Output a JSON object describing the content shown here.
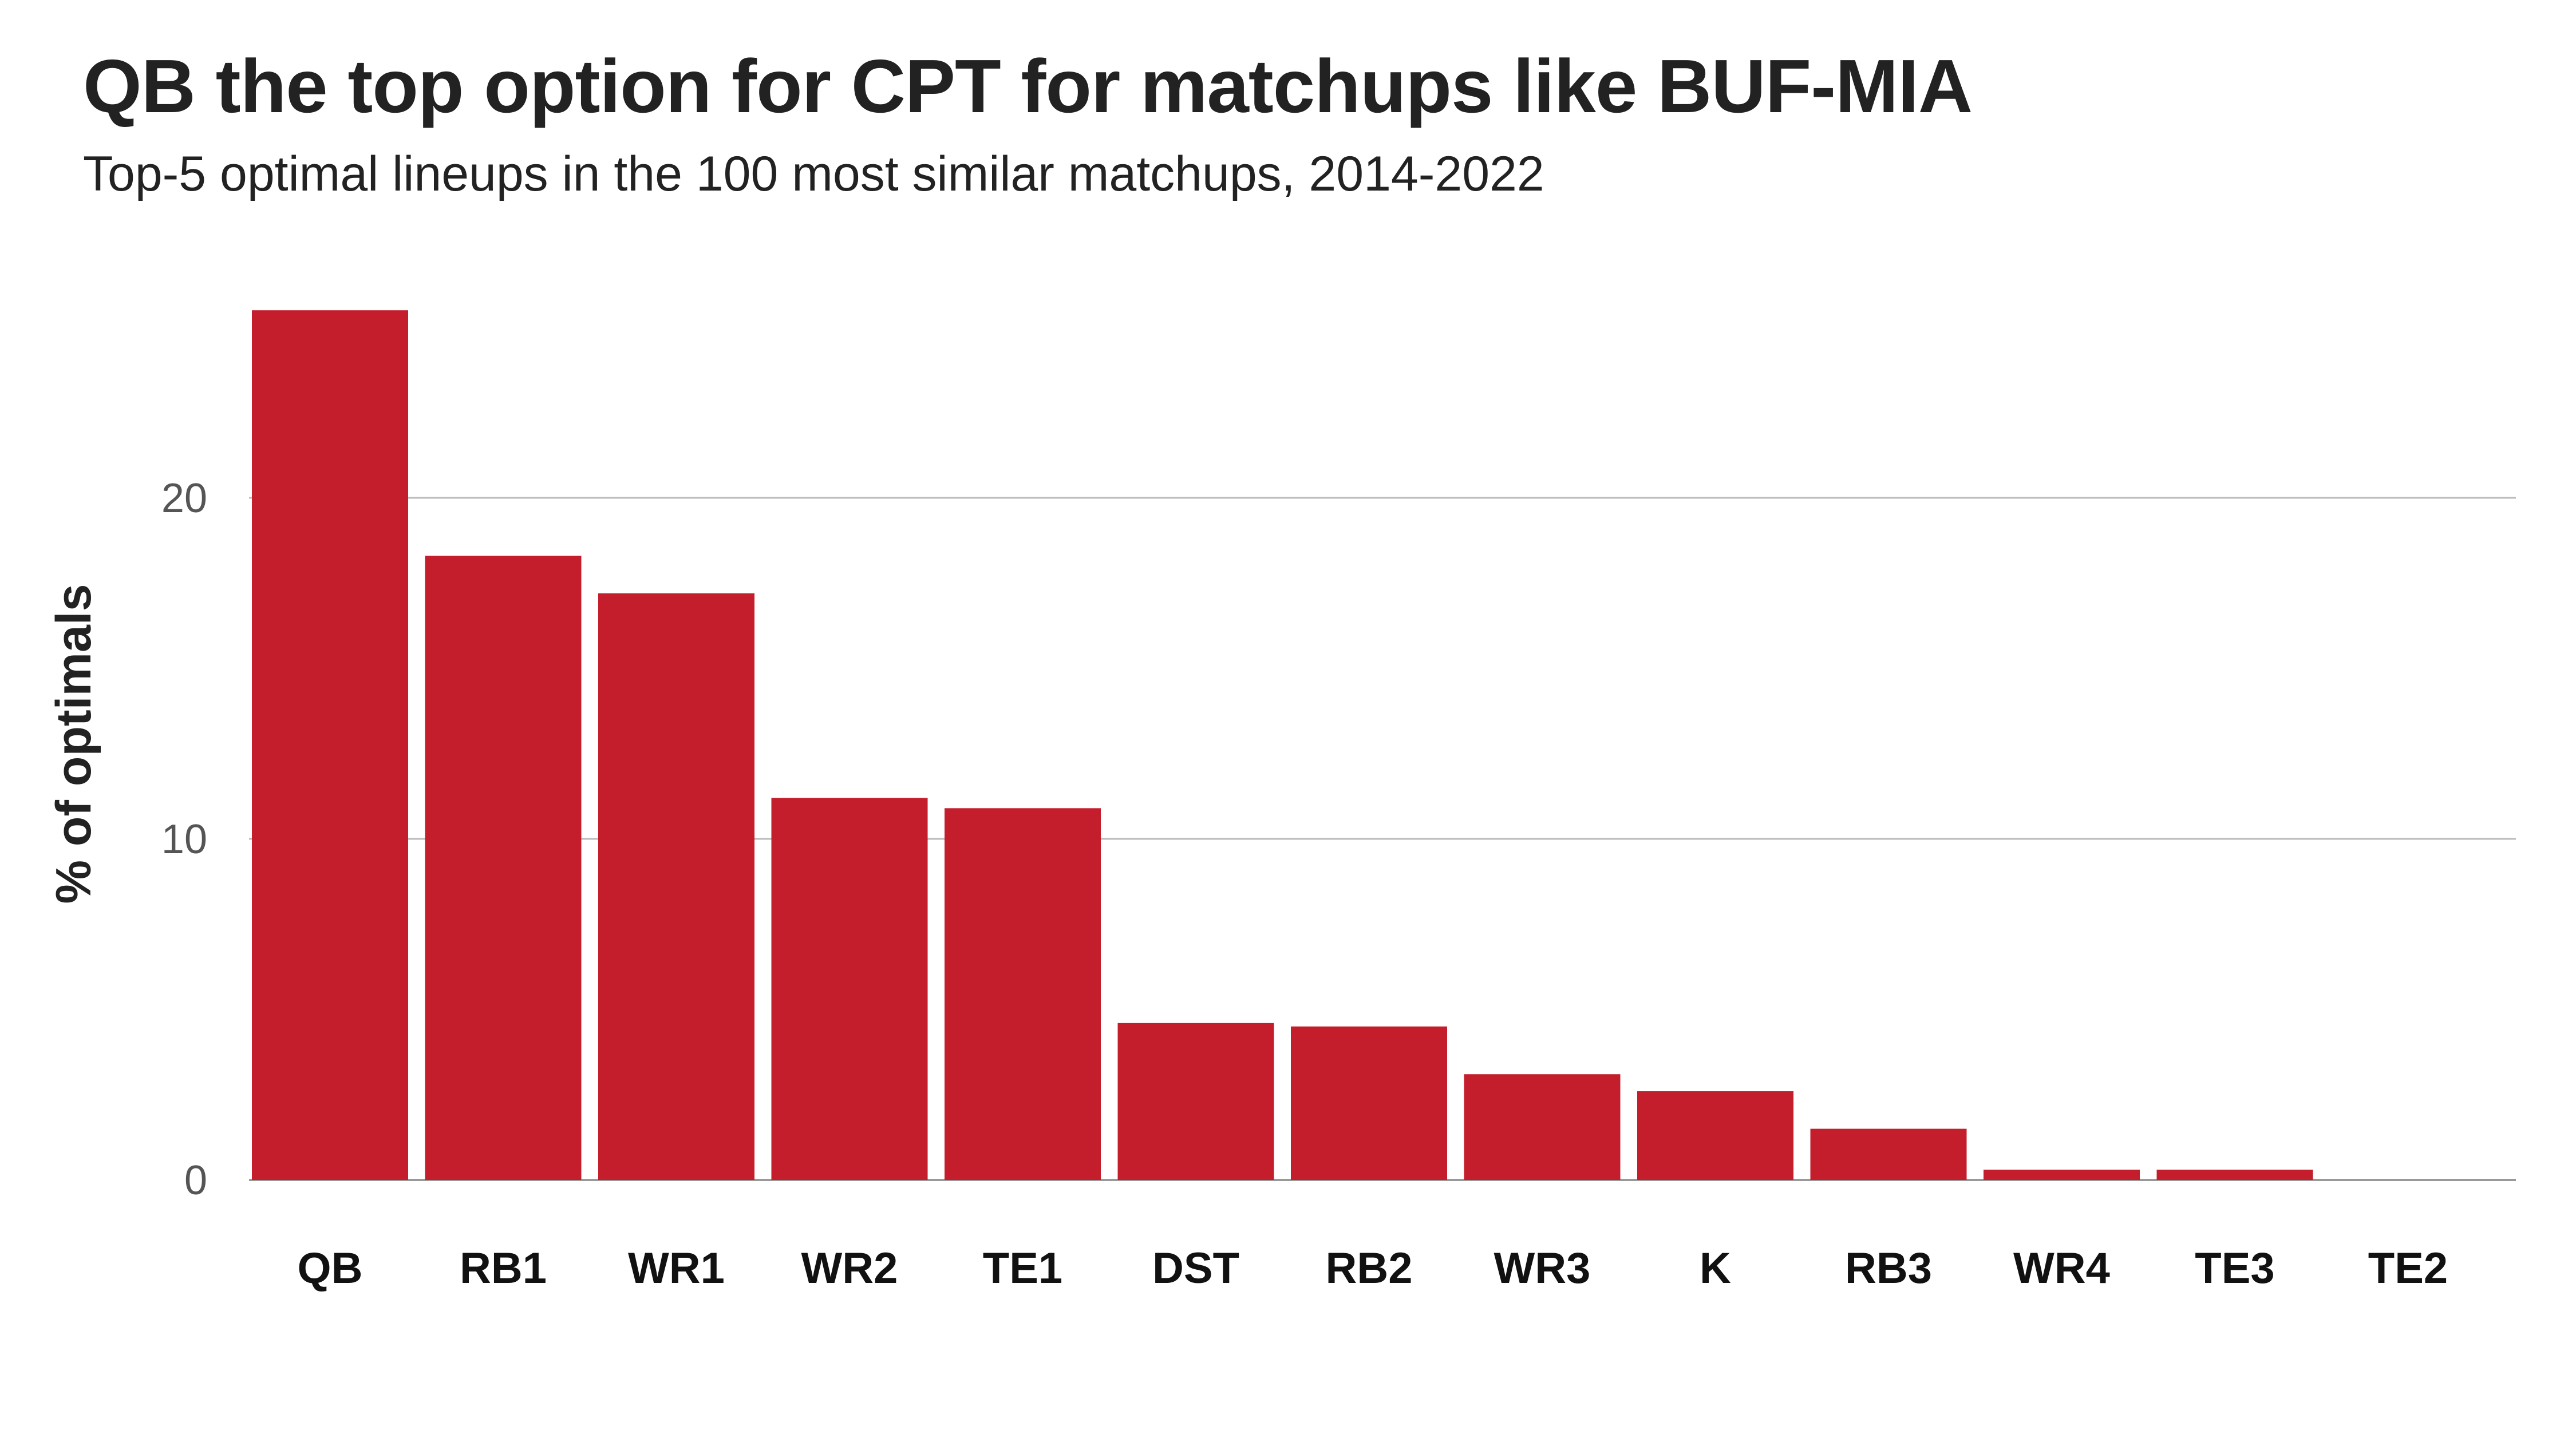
{
  "title": "QB the top option for CPT for matchups like BUF-MIA",
  "subtitle": "Top-5 optimal lineups in the 100 most similar matchups, 2014-2022",
  "colors": {
    "bar": "#C41E2C",
    "grid": "#BBBBBB",
    "baseline": "#999999"
  },
  "chart_data": {
    "type": "bar",
    "title": "QB the top option for CPT for matchups like BUF-MIA",
    "subtitle": "Top-5 optimal lineups in the 100 most similar matchups, 2014-2022",
    "xlabel": "",
    "ylabel": "% of optimals",
    "categories": [
      "QB",
      "RB1",
      "WR1",
      "WR2",
      "TE1",
      "DST",
      "RB2",
      "WR3",
      "K",
      "RB3",
      "WR4",
      "TE3",
      "TE2"
    ],
    "values": [
      25.5,
      18.3,
      17.2,
      11.2,
      10.9,
      4.6,
      4.5,
      3.1,
      2.6,
      1.5,
      0.3,
      0.3,
      0
    ],
    "ylim": [
      0,
      25.5
    ],
    "yticks": [
      0,
      10,
      20
    ],
    "grid": "horizontal",
    "legend": "none"
  }
}
